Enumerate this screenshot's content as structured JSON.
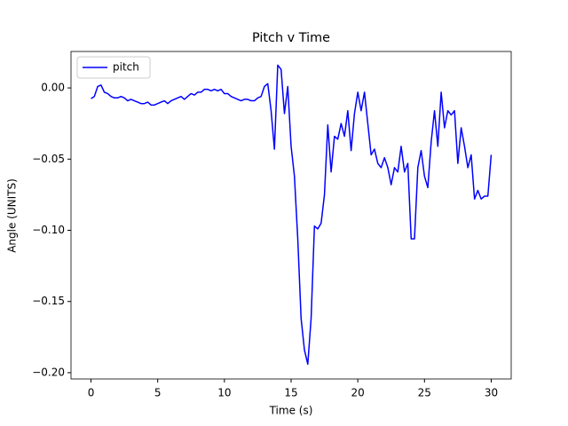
{
  "chart_data": {
    "type": "line",
    "title": "Pitch v Time",
    "xlabel": "Time (s)",
    "ylabel": "Angle (UNITS)",
    "x": [
      0,
      0.25,
      0.5,
      0.75,
      1,
      1.25,
      1.5,
      1.75,
      2,
      2.25,
      2.5,
      2.75,
      3,
      3.25,
      3.5,
      3.75,
      4,
      4.25,
      4.5,
      4.75,
      5,
      5.25,
      5.5,
      5.75,
      6,
      6.25,
      6.5,
      6.75,
      7,
      7.25,
      7.5,
      7.75,
      8,
      8.25,
      8.5,
      8.75,
      9,
      9.25,
      9.5,
      9.75,
      10,
      10.25,
      10.5,
      10.75,
      11,
      11.25,
      11.5,
      11.75,
      12,
      12.25,
      12.5,
      12.75,
      13,
      13.25,
      13.5,
      13.75,
      14,
      14.25,
      14.5,
      14.75,
      15,
      15.25,
      15.5,
      15.75,
      16,
      16.25,
      16.5,
      16.75,
      17,
      17.25,
      17.5,
      17.75,
      18,
      18.25,
      18.5,
      18.75,
      19,
      19.25,
      19.5,
      19.75,
      20,
      20.25,
      20.5,
      20.75,
      21,
      21.25,
      21.5,
      21.75,
      22,
      22.25,
      22.5,
      22.75,
      23,
      23.25,
      23.5,
      23.75,
      24,
      24.25,
      24.5,
      24.75,
      25,
      25.25,
      25.5,
      25.75,
      26,
      26.25,
      26.5,
      26.75,
      27,
      27.25,
      27.5,
      27.75,
      28,
      28.25,
      28.5,
      28.75,
      29,
      29.25,
      29.5,
      29.75,
      30
    ],
    "series": [
      {
        "name": "pitch",
        "color": "#0000ff",
        "values": [
          -0.0075,
          -0.006,
          0.001,
          0.002,
          -0.003,
          -0.004,
          -0.006,
          -0.007,
          -0.007,
          -0.006,
          -0.007,
          -0.009,
          -0.008,
          -0.009,
          -0.01,
          -0.011,
          -0.011,
          -0.01,
          -0.012,
          -0.012,
          -0.011,
          -0.01,
          -0.009,
          -0.011,
          -0.009,
          -0.008,
          -0.007,
          -0.006,
          -0.008,
          -0.006,
          -0.004,
          -0.005,
          -0.003,
          -0.003,
          -0.001,
          -0.001,
          -0.002,
          -0.001,
          -0.002,
          -0.001,
          -0.004,
          -0.004,
          -0.006,
          -0.007,
          -0.008,
          -0.009,
          -0.008,
          -0.008,
          -0.009,
          -0.009,
          -0.007,
          -0.006,
          0.001,
          0.003,
          -0.016,
          -0.043,
          0.016,
          0.013,
          -0.018,
          0.001,
          -0.041,
          -0.062,
          -0.106,
          -0.162,
          -0.184,
          -0.194,
          -0.162,
          -0.097,
          -0.099,
          -0.095,
          -0.075,
          -0.026,
          -0.059,
          -0.034,
          -0.036,
          -0.025,
          -0.034,
          -0.016,
          -0.044,
          -0.018,
          -0.003,
          -0.016,
          -0.003,
          -0.025,
          -0.047,
          -0.043,
          -0.053,
          -0.056,
          -0.049,
          -0.056,
          -0.068,
          -0.056,
          -0.059,
          -0.041,
          -0.059,
          -0.053,
          -0.106,
          -0.106,
          -0.056,
          -0.044,
          -0.062,
          -0.07,
          -0.038,
          -0.016,
          -0.041,
          -0.003,
          -0.028,
          -0.016,
          -0.019,
          -0.016,
          -0.053,
          -0.028,
          -0.041,
          -0.056,
          -0.047,
          -0.078,
          -0.072,
          -0.078,
          -0.076,
          -0.076,
          -0.047
        ]
      }
    ],
    "xlim": [
      -1.5,
      31.5
    ],
    "ylim": [
      -0.2044,
      0.0256
    ],
    "xticks": [
      0,
      5,
      10,
      15,
      20,
      25,
      30
    ],
    "yticks": [
      {
        "value": 0,
        "label": "0.00"
      },
      {
        "value": -0.05,
        "label": "−0.05"
      },
      {
        "value": -0.1,
        "label": "−0.10"
      },
      {
        "value": -0.15,
        "label": "−0.15"
      },
      {
        "value": -0.2,
        "label": "−0.20"
      }
    ],
    "legend": "upper left"
  }
}
